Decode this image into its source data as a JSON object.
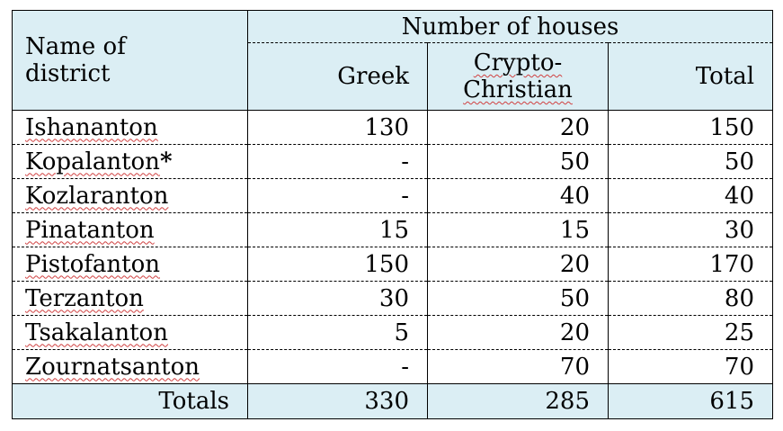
{
  "table": {
    "header": {
      "district_label_line1": "Name of",
      "district_label_line2": "district",
      "group_label": "Number of houses",
      "col_greek": "Greek",
      "col_crypto_line1": "Crypto-",
      "col_crypto_line2": "Christian",
      "col_total": "Total"
    },
    "rows": [
      {
        "name": "Ishananton",
        "greek": "130",
        "crypto": "20",
        "total": "150"
      },
      {
        "name": "Kopalanton",
        "mark": "*",
        "greek": "-",
        "crypto": "50",
        "total": "50"
      },
      {
        "name": "Kozlaranton",
        "greek": "-",
        "crypto": "40",
        "total": "40"
      },
      {
        "name": "Pinatanton",
        "greek": "15",
        "crypto": "15",
        "total": "30"
      },
      {
        "name": "Pistofanton",
        "greek": "150",
        "crypto": "20",
        "total": "170"
      },
      {
        "name": "Terzanton",
        "greek": "30",
        "crypto": "50",
        "total": "80"
      },
      {
        "name": "Tsakalanton",
        "greek": "5",
        "crypto": "20",
        "total": "25"
      },
      {
        "name": "Zournatsanton",
        "greek": "-",
        "crypto": "70",
        "total": "70"
      }
    ],
    "totals": {
      "label": "Totals",
      "greek": "330",
      "crypto": "285",
      "total": "615"
    },
    "colors": {
      "header_bg": "#dbeef4",
      "spellcheck_underline": "#d04040"
    }
  }
}
